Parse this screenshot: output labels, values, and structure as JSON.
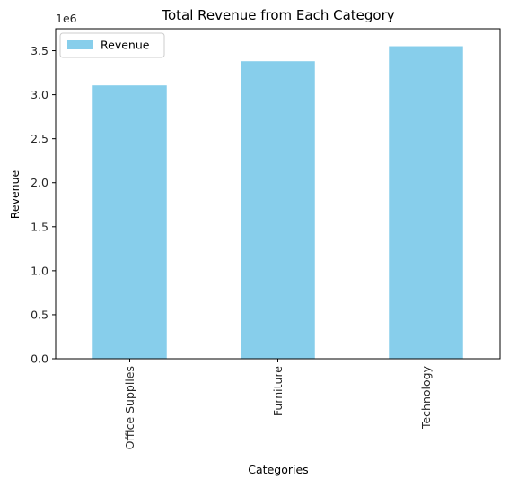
{
  "chart_data": {
    "type": "bar",
    "title": "Total Revenue from Each Category",
    "xlabel": "Categories",
    "ylabel": "Revenue",
    "categories": [
      "Office Supplies",
      "Furniture",
      "Technology"
    ],
    "series": [
      {
        "name": "Revenue",
        "values": [
          3106000,
          3381000,
          3551000
        ]
      }
    ],
    "ylim": [
      0,
      3750000
    ],
    "yticks": [
      0,
      500000,
      1000000,
      1500000,
      2000000,
      2500000,
      3000000,
      3500000
    ],
    "ytick_labels": [
      "0.0",
      "0.5",
      "1.0",
      "1.5",
      "2.0",
      "2.5",
      "3.0",
      "3.5"
    ],
    "y_offset_label": "1e6",
    "bar_color": "#87CEEB",
    "legend_position": "upper-left",
    "grid": false,
    "x_tick_rotation": 90
  }
}
